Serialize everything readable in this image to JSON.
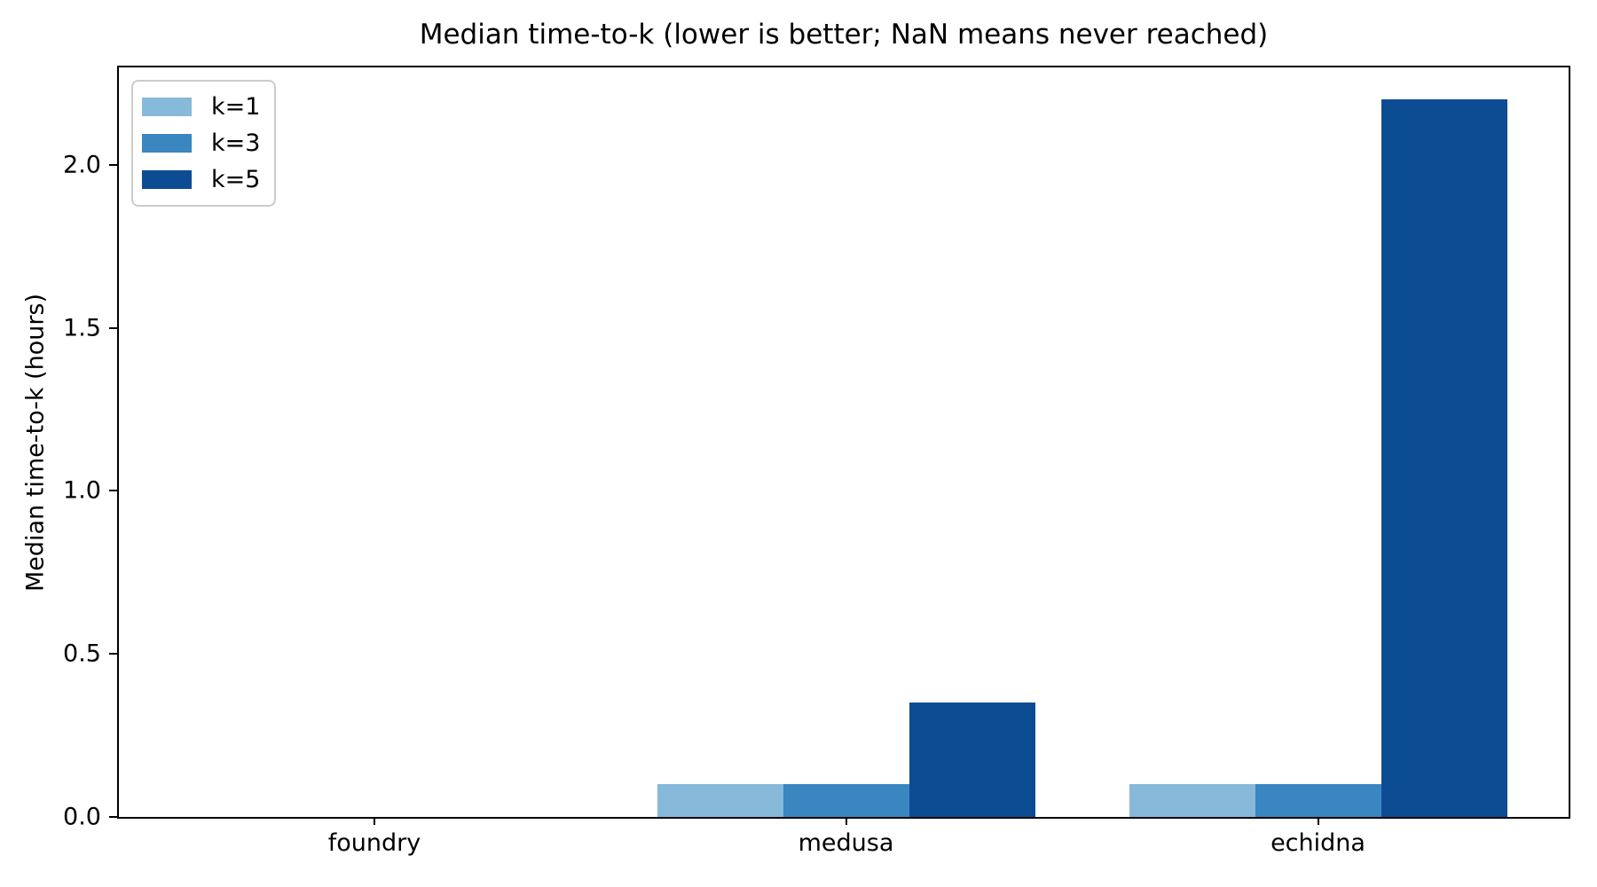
{
  "chart_data": {
    "type": "bar",
    "title": "Median time-to-k (lower is better; NaN means never reached)",
    "xlabel": "",
    "ylabel": "Median time-to-k (hours)",
    "categories": [
      "foundry",
      "medusa",
      "echidna"
    ],
    "series": [
      {
        "name": "k=1",
        "color": "#87b9da",
        "values": [
          null,
          0.1,
          0.1
        ]
      },
      {
        "name": "k=3",
        "color": "#3a86c1",
        "values": [
          null,
          0.1,
          0.1
        ]
      },
      {
        "name": "k=5",
        "color": "#0c4c93",
        "values": [
          null,
          0.35,
          2.2
        ]
      }
    ],
    "nan_policy": "missing bar means NaN (never reached)",
    "ylim": [
      0,
      2.31
    ],
    "ytick_values": [
      0.0,
      0.5,
      1.0,
      1.5,
      2.0
    ],
    "ytick_labels": [
      "0.0",
      "0.5",
      "1.0",
      "1.5",
      "2.0"
    ],
    "grid": false,
    "legend": {
      "position": "upper left",
      "entries": [
        "k=1",
        "k=3",
        "k=5"
      ]
    },
    "colors": {
      "axis": "#000000",
      "legend_border": "#cccccc",
      "background": "#ffffff"
    }
  }
}
